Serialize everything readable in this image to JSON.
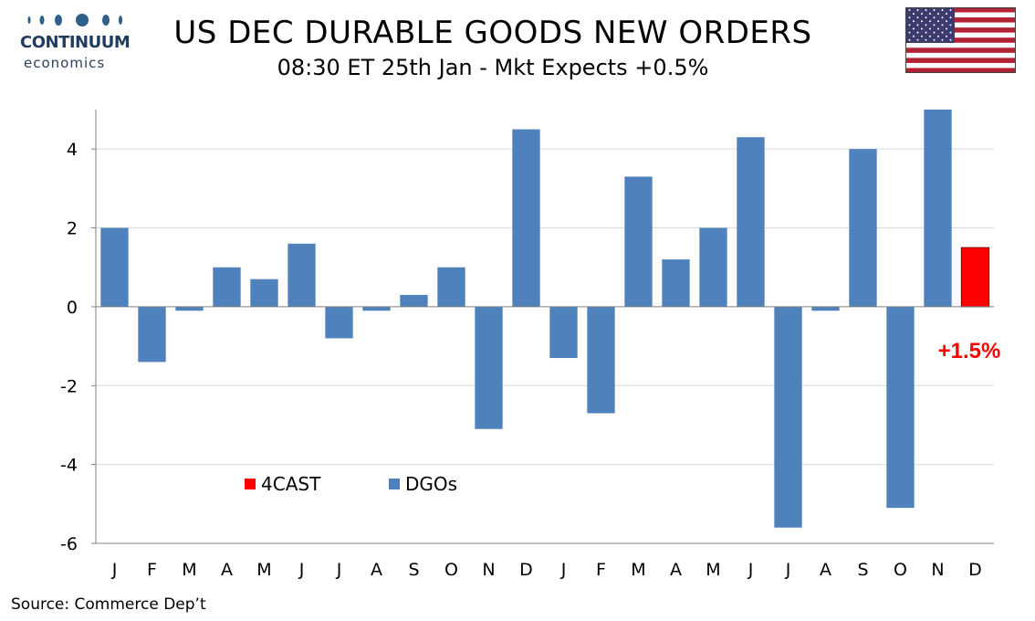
{
  "logo": {
    "word1": "CONTINUUM",
    "word2": "economics"
  },
  "header": {
    "title": "US DEC DURABLE GOODS NEW ORDERS",
    "subtitle": "08:30 ET 25th Jan - Mkt Expects +0.5%"
  },
  "source": "Source: Commerce Dep’t",
  "colors": {
    "dgos": "#4f81bd",
    "forecast": "#ff0000",
    "axis": "#808080",
    "grid": "#d9d9d9"
  },
  "chart_data": {
    "type": "bar",
    "categories": [
      "J",
      "F",
      "M",
      "A",
      "M",
      "J",
      "J",
      "A",
      "S",
      "O",
      "N",
      "D",
      "J",
      "F",
      "M",
      "A",
      "M",
      "J",
      "J",
      "A",
      "S",
      "O",
      "N",
      "D"
    ],
    "series": [
      {
        "name": "DGOs",
        "values": [
          2.0,
          -1.4,
          -0.1,
          1.0,
          0.7,
          1.6,
          -0.8,
          -0.1,
          0.3,
          1.0,
          -3.1,
          4.5,
          -1.3,
          -2.7,
          3.3,
          1.2,
          2.0,
          4.3,
          -5.6,
          -0.1,
          4.0,
          -5.1,
          5.0,
          null
        ]
      },
      {
        "name": "4CAST",
        "values": [
          null,
          null,
          null,
          null,
          null,
          null,
          null,
          null,
          null,
          null,
          null,
          null,
          null,
          null,
          null,
          null,
          null,
          null,
          null,
          null,
          null,
          null,
          null,
          1.5
        ]
      }
    ],
    "ylim": [
      -6,
      5
    ],
    "yticks": [
      -6,
      -4,
      -2,
      0,
      2,
      4
    ],
    "legend": [
      "4CAST",
      "DGOs"
    ],
    "annotation": "+1.5%",
    "grid": true
  }
}
